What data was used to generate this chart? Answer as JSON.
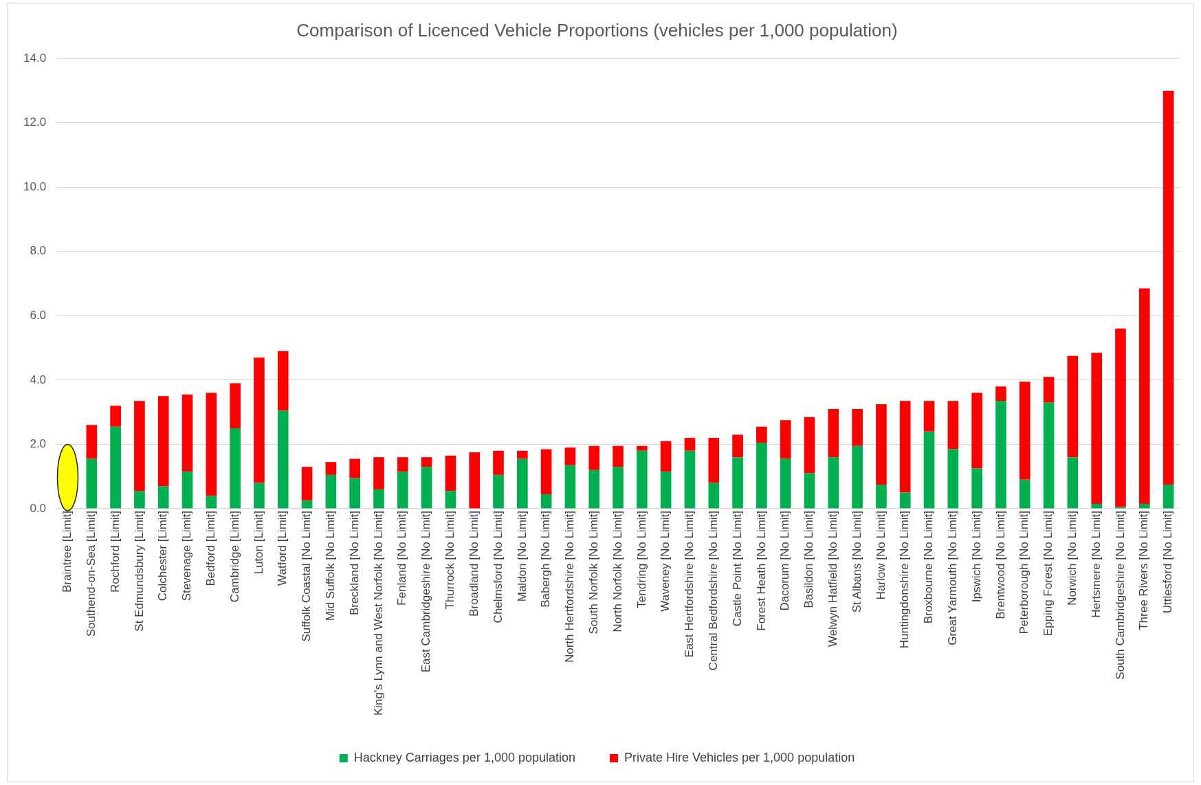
{
  "chart_data": {
    "type": "bar",
    "title": "Comparison of Licenced Vehicle Proportions (vehicles per 1,000 population)",
    "categories": [
      "Braintree [Limit]",
      "Southend-on-Sea [Limit]",
      "Rochford [Limit]",
      "St Edmundsbury [Limit]",
      "Colchester [Limit]",
      "Stevenage [Limit]",
      "Bedford [Limit]",
      "Cambridge [Limit]",
      "Luton [Limit]",
      "Watford [Limit]",
      "Suffolk Coastal [No Limit]",
      "Mid Suffolk [No Limit]",
      "Breckland [No Limit]",
      "King's Lynn and West Norfolk [No Limit]",
      "Fenland [No Limit]",
      "East Cambridgeshire [No Limit]",
      "Thurrock [No Limit]",
      "Broadland [No Limit]",
      "Chelmsford [No Limit]",
      "Maldon [No Limit]",
      "Babergh [No Limit]",
      "North Hertfordshire [No Limit]",
      "South Norfolk [No Limit]",
      "North Norfolk [No Limit]",
      "Tendring [No Limit]",
      "Waveney [No Limit]",
      "East Hertfordshire [No Limit]",
      "Central Bedfordshire [No Limit]",
      "Castle Point [No Limit]",
      "Forest Heath [No Limit]",
      "Dacorum [No Limit]",
      "Basildon [No Limit]",
      "Welwyn Hatfield [No Limit]",
      "St Albans [No Limit]",
      "Harlow [No Limit]",
      "Huntingdonshire [No Limit]",
      "Broxbourne [No Limit]",
      "Great Yarmouth [No Limit]",
      "Ipswich [No Limit]",
      "Brentwood [No Limit]",
      "Peterborough [No Limit]",
      "Epping Forest [No Limit]",
      "Norwich [No Limit]",
      "Hertsmere [No Limit]",
      "South Cambridgeshire [No Limit]",
      "Three Rivers [No Limit]",
      "Uttlesford [No Limit]"
    ],
    "series": [
      {
        "name": "Hackney Carriages per 1,000 population",
        "color": "#00b050",
        "values": [
          null,
          1.55,
          2.55,
          0.55,
          0.7,
          1.15,
          0.4,
          2.5,
          0.8,
          3.05,
          0.25,
          1.05,
          0.95,
          0.6,
          1.15,
          1.3,
          0.55,
          0.0,
          1.05,
          1.55,
          0.45,
          1.35,
          1.2,
          1.3,
          1.8,
          1.15,
          1.8,
          0.8,
          1.6,
          2.05,
          1.55,
          1.1,
          1.6,
          1.95,
          0.75,
          0.5,
          2.4,
          1.85,
          1.25,
          3.35,
          0.9,
          3.3,
          1.6,
          0.15,
          0.05,
          0.15,
          0.75
        ]
      },
      {
        "name": "Private Hire Vehicles per 1,000 population",
        "color": "#ff0000",
        "values": [
          null,
          1.05,
          0.65,
          2.8,
          2.8,
          2.4,
          3.2,
          1.4,
          3.9,
          1.85,
          1.05,
          0.4,
          0.6,
          1.0,
          0.45,
          0.3,
          1.1,
          1.75,
          0.75,
          0.25,
          1.4,
          0.55,
          0.75,
          0.65,
          0.15,
          0.95,
          0.4,
          1.4,
          0.7,
          0.5,
          1.2,
          1.75,
          1.5,
          1.15,
          2.5,
          2.85,
          0.95,
          1.5,
          2.35,
          0.45,
          3.05,
          0.8,
          3.15,
          4.7,
          5.55,
          6.7,
          12.25
        ]
      }
    ],
    "stacked": true,
    "ylim": [
      0,
      14
    ],
    "yticks": [
      {
        "value": 0,
        "label": "0.0"
      },
      {
        "value": 2,
        "label": "2.0"
      },
      {
        "value": 4,
        "label": "4.0"
      },
      {
        "value": 6,
        "label": "6.0"
      },
      {
        "value": 8,
        "label": "8.0"
      },
      {
        "value": 10,
        "label": "10.0"
      },
      {
        "value": 12,
        "label": "12.0"
      },
      {
        "value": 14,
        "label": "14.0"
      }
    ],
    "grid": "y",
    "legend": "bottom"
  }
}
